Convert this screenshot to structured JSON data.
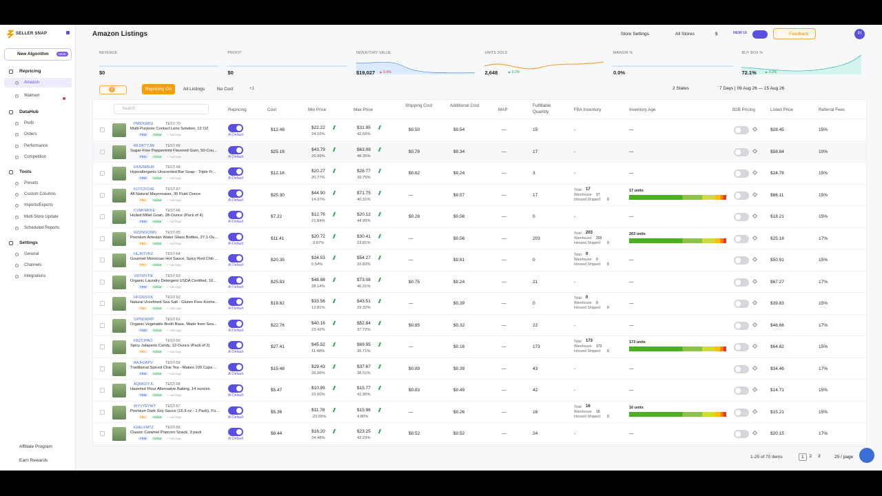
{
  "sidebar": {
    "logo": "SELLER SNAP",
    "new_algorithm": "New Algorithm",
    "new_badge": "NEW",
    "sections": [
      {
        "title": "Repricing",
        "items": [
          "Amazon",
          "Walmart"
        ]
      },
      {
        "title": "DataHub",
        "items": [
          "Profit",
          "Orders",
          "Performance",
          "Competition"
        ]
      },
      {
        "title": "Tools",
        "items": [
          "Presets",
          "Custom Columns",
          "Imports/Exports",
          "Multi Store Update",
          "Scheduled Reports"
        ]
      },
      {
        "title": "Settings",
        "items": [
          "General",
          "Channels",
          "Integrations"
        ]
      }
    ],
    "footer": [
      "Affiliate Program",
      "Earn Rewards"
    ]
  },
  "header": {
    "title": "Amazon Listings",
    "store_settings": "Store Settings",
    "all_stores": "All Stores",
    "currency": "$",
    "new_ui": "NEW UI",
    "feedback": "Feedback",
    "avatar": "PI"
  },
  "kpis": [
    {
      "label": "REVENUE",
      "value": "$0"
    },
    {
      "label": "PROFIT",
      "value": "$0"
    },
    {
      "label": "INVENTORY VALUE",
      "value": "$19,027",
      "change": "▲ 5.9%"
    },
    {
      "label": "UNITS SOLD",
      "value": "2,648",
      "change": "▲ 0.2%"
    },
    {
      "label": "MARGIN %",
      "value": "0.0%"
    },
    {
      "label": "BUY BOX %",
      "value": "72.1%",
      "change": "▲ 0.2%"
    }
  ],
  "filters": {
    "count": "1",
    "repricing_on": "Repricing On",
    "all_listings": "All Listings",
    "no_cost": "No Cost",
    "more": "+1",
    "states": "2 States",
    "date_range": "7 Days | 09 Aug 26 — 15 Aug 26"
  },
  "table": {
    "search": "Search",
    "columns": [
      "Repricing",
      "Cost",
      "Min Price",
      "Max Price",
      "Shipping Cost",
      "Additional Cost",
      "MAP",
      "Fulfillable Quantity",
      "FBA Inventory",
      "Inventory Age",
      "B2B Pricing",
      "Listed Price",
      "Referral Fees"
    ],
    "labels": {
      "ai_default": "AI Default",
      "active": "Active",
      "add_tags": "+ Add tags",
      "total": "Total:",
      "warehouse": "Warehouse:",
      "inbound": "Inbound Shipped:"
    },
    "rows": [
      {
        "asin": "PMIDGMGI",
        "sku": "TEST-70",
        "title": "Multi-Purpose Contact Lens Solution, 12 OZ",
        "channel": "FBM",
        "cost": "$12.48",
        "min_price": "$22.22",
        "min_margin": "24.16%",
        "max_price": "$31.95",
        "max_margin": "42.69%",
        "shipping": "$0.50",
        "additional": "$0.54",
        "map": "—",
        "fulfillable": "15",
        "fba_inventory": "-",
        "inventory_age": "—",
        "listed": "$28.45",
        "referral": "15%"
      },
      {
        "asin": "MLDKTYJW",
        "sku": "TEST-69",
        "title": "Sugar-Free Peppermint Flavored Gum, 50-Cou...",
        "channel": "FBM",
        "cost": "$25.16",
        "min_price": "$43.79",
        "min_margin": "29.99%",
        "max_price": "$63.09",
        "max_margin": "48.35%",
        "shipping": "$0.78",
        "additional": "$0.34",
        "map": "—",
        "fulfillable": "17",
        "fba_inventory": "-",
        "inventory_age": "—",
        "listed": "$58.84",
        "referral": "10%"
      },
      {
        "asin": "EK8ZMBUR",
        "sku": "TEST-68",
        "title": "Hypoallergenic Unscented Bar Soap - Triple Fr...",
        "channel": "FBM",
        "cost": "$12.16",
        "min_price": "$20.27",
        "min_margin": "20.77%",
        "max_price": "$28.77",
        "max_margin": "39.75%",
        "shipping": "$0.62",
        "additional": "$0.24",
        "map": "—",
        "fulfillable": "3",
        "fba_inventory": "-",
        "inventory_age": "—",
        "listed": "$24.78",
        "referral": "15%"
      },
      {
        "asin": "KUTCFCHE",
        "sku": "TEST-67",
        "title": "All Natural Mayonnaise, 30 Fluid Ounce",
        "channel": "FBA",
        "cost": "$25.30",
        "min_price": "$44.90",
        "min_margin": "14.27%",
        "max_price": "$71.75",
        "max_margin": "40.31%",
        "shipping": "—",
        "additional": "$0.57",
        "map": "—",
        "fulfillable": "17",
        "fba_inventory": {
          "total": "17",
          "warehouse": "17",
          "inbound": "0"
        },
        "inventory_age": "17 units",
        "listed": "$66.11",
        "referral": "15%"
      },
      {
        "asin": "CVMFMKKE",
        "sku": "TEST-66",
        "title": "Hulled Millet Grain, 28-Ounce (Pack of 4)",
        "channel": "FBM",
        "cost": "$7.22",
        "min_price": "$12.76",
        "min_margin": "21.84%",
        "max_price": "$20.12",
        "max_margin": "44.95%",
        "shipping": "$0.28",
        "additional": "$0.56",
        "map": "—",
        "fulfillable": "0",
        "fba_inventory": "-",
        "inventory_age": "—",
        "listed": "$18.21",
        "referral": "15%"
      },
      {
        "asin": "MZZNGQWN",
        "sku": "TEST-65",
        "title": "Premium Artesian Water Glass Bottles, 27.1-Ou...",
        "channel": "FBA",
        "cost": "$11.41",
        "min_price": "$20.72",
        "min_margin": "-3.87%",
        "max_price": "$30.41",
        "max_margin": "23.81%",
        "shipping": "—",
        "additional": "$0.56",
        "map": "—",
        "fulfillable": "203",
        "fba_inventory": {
          "total": "203",
          "warehouse": "203",
          "inbound": "0"
        },
        "inventory_age": "203 units",
        "listed": "$25.18",
        "referral": "17%"
      },
      {
        "asin": "HLJNTVRZ",
        "sku": "TEST-64",
        "title": "Gourmet Moroccan Hot Sauce, Spicy Red Chili ...",
        "channel": "FBA",
        "cost": "$20.35",
        "min_price": "$34.53",
        "min_margin": "5.54%",
        "max_price": "$54.27",
        "max_margin": "33.83%",
        "shipping": "—",
        "additional": "$0.81",
        "map": "—",
        "fulfillable": "0",
        "fba_inventory": {
          "total": "0",
          "warehouse": "0",
          "inbound": "0"
        },
        "inventory_age": "—",
        "listed": "$50.91",
        "referral": "15%"
      },
      {
        "asin": "VWTRVTIE",
        "sku": "TEST-63",
        "title": "Organic Laundry Detergent USDA Certified, 10...",
        "channel": "FBM",
        "cost": "$25.83",
        "min_price": "$48.88",
        "min_margin": "28.14%",
        "max_price": "$73.08",
        "max_margin": "46.31%",
        "shipping": "$0.75",
        "additional": "$0.24",
        "map": "—",
        "fulfillable": "21",
        "fba_inventory": "-",
        "inventory_age": "—",
        "listed": "$67.27",
        "referral": "17%"
      },
      {
        "asin": "HFGNSISK",
        "sku": "TEST-62",
        "title": "Natural Unrefined Sea Salt - Gluten Free Koshe...",
        "channel": "FBA",
        "cost": "$19.82",
        "min_price": "$33.56",
        "min_margin": "12.81%",
        "max_price": "$43.51",
        "max_margin": "29.32%",
        "shipping": "—",
        "additional": "$0.39",
        "map": "—",
        "fulfillable": "0",
        "fba_inventory": {
          "total": "0",
          "warehouse": "0",
          "inbound": "0"
        },
        "inventory_age": "—",
        "listed": "$39.83",
        "referral": "15%"
      },
      {
        "asin": "SIPNDWRP",
        "sku": "TEST-61",
        "title": "Organic Vegetable Broth Base, Made from Sea...",
        "channel": "FBM",
        "cost": "$22.76",
        "min_price": "$40.16",
        "min_margin": "23.42%",
        "max_price": "$52.84",
        "max_margin": "37.72%",
        "shipping": "$0.85",
        "additional": "$0.32",
        "map": "—",
        "fulfillable": "22",
        "fba_inventory": "-",
        "inventory_age": "—",
        "listed": "$48.66",
        "referral": "17%"
      },
      {
        "asin": "KBZCIPAO",
        "sku": "TEST-60",
        "title": "Spicy Jalapeno Candy, 12-Ounce (Pack of 3)",
        "channel": "FBA",
        "cost": "$27.41",
        "min_price": "$45.52",
        "min_margin": "11.48%",
        "max_price": "$69.95",
        "max_margin": "36.71%",
        "shipping": "—",
        "additional": "$0.16",
        "map": "—",
        "fulfillable": "173",
        "fba_inventory": {
          "total": "173",
          "warehouse": "173",
          "inbound": "0"
        },
        "inventory_age": "173 units",
        "listed": "$64.82",
        "referral": "15%"
      },
      {
        "asin": "AAJHJAPV",
        "sku": "TEST-59",
        "title": "Traditional Spiced Chai Tea - Makes 100 Cups ...",
        "channel": "FBM",
        "cost": "$15.48",
        "min_price": "$29.43",
        "min_margin": "26.06%",
        "max_price": "$37.67",
        "max_margin": "38.51%",
        "shipping": "$0.89",
        "additional": "$0.39",
        "map": "—",
        "fulfillable": "43",
        "fba_inventory": "-",
        "inventory_age": "—",
        "listed": "$34.46",
        "referral": "17%"
      },
      {
        "asin": "AQRKDYJL",
        "sku": "TEST-58",
        "title": "Hazelnut Flour Alternative Baking, 14 ounces",
        "channel": "FBM",
        "cost": "$5.47",
        "min_price": "$10.95",
        "min_margin": "23.00%",
        "max_price": "$15.77",
        "max_margin": "41.95%",
        "shipping": "$0.83",
        "additional": "$0.49",
        "map": "—",
        "fulfillable": "42",
        "fba_inventory": "-",
        "inventory_age": "—",
        "listed": "$14.71",
        "referral": "15%"
      },
      {
        "asin": "WYVYEYWT",
        "sku": "TEST-57",
        "title": "Premium Dark Soy Sauce (16.9 oz - 1 Pack), Fu...",
        "channel": "FBA",
        "cost": "$5.36",
        "min_price": "$11.78",
        "min_margin": "-23.65%",
        "max_price": "$15.96",
        "max_margin": "4.80%",
        "shipping": "—",
        "additional": "$0.26",
        "map": "—",
        "fulfillable": "16",
        "fba_inventory": {
          "total": "16",
          "warehouse": "16",
          "inbound": "0"
        },
        "inventory_age": "16 units",
        "listed": "$15.21",
        "referral": "15%"
      },
      {
        "asin": "KHELFMTZ",
        "sku": "TEST-56",
        "title": "Classic Caramel Popcorn Snack, 3 pack",
        "channel": "FBM",
        "cost": "$8.44",
        "min_price": "$16.20",
        "min_margin": "24.48%",
        "max_price": "$23.25",
        "max_margin": "42.23%",
        "shipping": "$0.52",
        "additional": "$0.52",
        "map": "—",
        "fulfillable": "24",
        "fba_inventory": "-",
        "inventory_age": "—",
        "listed": "$20.15",
        "referral": "17%"
      }
    ]
  },
  "pagination": {
    "summary": "1-25 of 70 items",
    "pages": [
      "1",
      "2",
      "3"
    ],
    "page_size": "25 / page"
  }
}
